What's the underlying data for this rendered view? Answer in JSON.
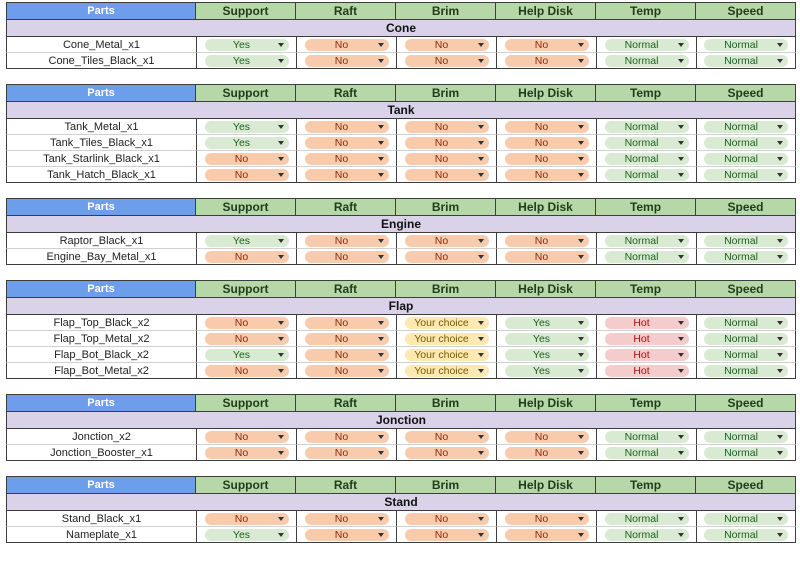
{
  "headers": {
    "parts": "Parts",
    "columns": [
      "Support",
      "Raft",
      "Brim",
      "Help Disk",
      "Temp",
      "Speed"
    ]
  },
  "colors": {
    "parts_header": "#6d9eeb",
    "column_header": "#b6d7a8",
    "section_title": "#d9d2e9",
    "yes": "#d9ead3",
    "no": "#f9cbad",
    "normal": "#d9ead3",
    "hot": "#f4cccc",
    "your_choice": "#fce8b2"
  },
  "icons": {
    "dropdown": "dropdown-arrow-icon"
  },
  "sections": [
    {
      "title": "Cone",
      "rows": [
        {
          "part": "Cone_Metal_x1",
          "values": [
            "Yes",
            "No",
            "No",
            "No",
            "Normal",
            "Normal"
          ]
        },
        {
          "part": "Cone_Tiles_Black_x1",
          "values": [
            "Yes",
            "No",
            "No",
            "No",
            "Normal",
            "Normal"
          ]
        }
      ]
    },
    {
      "title": "Tank",
      "rows": [
        {
          "part": "Tank_Metal_x1",
          "values": [
            "Yes",
            "No",
            "No",
            "No",
            "Normal",
            "Normal"
          ]
        },
        {
          "part": "Tank_Tiles_Black_x1",
          "values": [
            "Yes",
            "No",
            "No",
            "No",
            "Normal",
            "Normal"
          ]
        },
        {
          "part": "Tank_Starlink_Black_x1",
          "values": [
            "No",
            "No",
            "No",
            "No",
            "Normal",
            "Normal"
          ]
        },
        {
          "part": "Tank_Hatch_Black_x1",
          "values": [
            "No",
            "No",
            "No",
            "No",
            "Normal",
            "Normal"
          ]
        }
      ]
    },
    {
      "title": "Engine",
      "rows": [
        {
          "part": "Raptor_Black_x1",
          "values": [
            "Yes",
            "No",
            "No",
            "No",
            "Normal",
            "Normal"
          ]
        },
        {
          "part": "Engine_Bay_Metal_x1",
          "values": [
            "No",
            "No",
            "No",
            "No",
            "Normal",
            "Normal"
          ]
        }
      ]
    },
    {
      "title": "Flap",
      "rows": [
        {
          "part": "Flap_Top_Black_x2",
          "values": [
            "No",
            "No",
            "Your choice",
            "Yes",
            "Hot",
            "Normal"
          ]
        },
        {
          "part": "Flap_Top_Metal_x2",
          "values": [
            "No",
            "No",
            "Your choice",
            "Yes",
            "Hot",
            "Normal"
          ]
        },
        {
          "part": "Flap_Bot_Black_x2",
          "values": [
            "Yes",
            "No",
            "Your choice",
            "Yes",
            "Hot",
            "Normal"
          ]
        },
        {
          "part": "Flap_Bot_Metal_x2",
          "values": [
            "No",
            "No",
            "Your choice",
            "Yes",
            "Hot",
            "Normal"
          ]
        }
      ]
    },
    {
      "title": "Jonction",
      "rows": [
        {
          "part": "Jonction_x2",
          "values": [
            "No",
            "No",
            "No",
            "No",
            "Normal",
            "Normal"
          ]
        },
        {
          "part": "Jonction_Booster_x1",
          "values": [
            "No",
            "No",
            "No",
            "No",
            "Normal",
            "Normal"
          ]
        }
      ]
    },
    {
      "title": "Stand",
      "rows": [
        {
          "part": "Stand_Black_x1",
          "values": [
            "No",
            "No",
            "No",
            "No",
            "Normal",
            "Normal"
          ]
        },
        {
          "part": "Nameplate_x1",
          "values": [
            "Yes",
            "No",
            "No",
            "No",
            "Normal",
            "Normal"
          ]
        }
      ]
    }
  ]
}
